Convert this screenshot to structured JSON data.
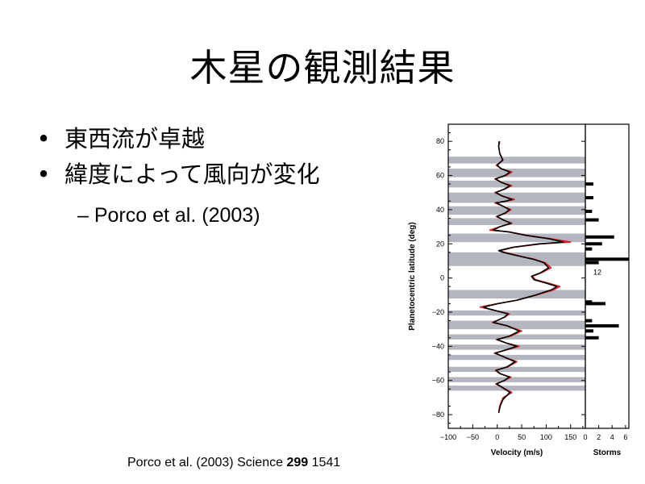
{
  "slide": {
    "title": "木星の観測結果",
    "bullets": [
      "東西流が卓越",
      "緯度によって風向が変化"
    ],
    "bullet_symbol": "•",
    "sub_bullet": "– Porco et al. (2003)",
    "citation": {
      "prefix": "Porco et al. (2003) Science ",
      "volume": "299",
      "page": " 1541"
    }
  },
  "chart_data": {
    "type": "line",
    "xlabel": "Velocity (m/s)",
    "ylabel": "Planetocentric latitude (deg)",
    "xlim": [
      -100,
      180
    ],
    "ylim": [
      -88,
      90
    ],
    "x_ticks": [
      "−100",
      "−50",
      "0",
      "50",
      "100",
      "150"
    ],
    "y_ticks": [
      "80",
      "60",
      "40",
      "20",
      "0",
      "−20",
      "−40",
      "−60",
      "−80"
    ],
    "bands": [
      [
        67,
        71
      ],
      [
        59,
        64
      ],
      [
        53,
        57
      ],
      [
        44,
        50
      ],
      [
        37,
        42
      ],
      [
        31,
        35
      ],
      [
        21,
        26
      ],
      [
        7,
        15
      ],
      [
        -7,
        -12
      ],
      [
        -19,
        -22
      ],
      [
        -25,
        -30
      ],
      [
        -33,
        -36
      ],
      [
        -39,
        -42
      ],
      [
        -45,
        -48
      ],
      [
        -52,
        -55
      ],
      [
        -58,
        -61
      ],
      [
        -63,
        -66
      ]
    ],
    "series": [
      {
        "color": "#d42020",
        "points": [
          [
            3,
            -78
          ],
          [
            6,
            -74
          ],
          [
            12,
            -70
          ],
          [
            30,
            -67
          ],
          [
            10,
            -64
          ],
          [
            -3,
            -62
          ],
          [
            15,
            -60
          ],
          [
            28,
            -58
          ],
          [
            5,
            -56
          ],
          [
            -4,
            -54
          ],
          [
            22,
            -52
          ],
          [
            40,
            -49
          ],
          [
            12,
            -46
          ],
          [
            -6,
            -44
          ],
          [
            20,
            -42
          ],
          [
            45,
            -40
          ],
          [
            18,
            -38
          ],
          [
            -2,
            -36
          ],
          [
            28,
            -34
          ],
          [
            50,
            -31
          ],
          [
            20,
            -28
          ],
          [
            -10,
            -26
          ],
          [
            15,
            -23
          ],
          [
            25,
            -21
          ],
          [
            -20,
            -18
          ],
          [
            -35,
            -17
          ],
          [
            0,
            -15
          ],
          [
            40,
            -13
          ],
          [
            80,
            -10
          ],
          [
            115,
            -7
          ],
          [
            128,
            -5
          ],
          [
            105,
            -3
          ],
          [
            78,
            -1
          ],
          [
            72,
            1
          ],
          [
            90,
            3
          ],
          [
            110,
            6
          ],
          [
            98,
            9
          ],
          [
            75,
            11
          ],
          [
            45,
            13
          ],
          [
            15,
            15
          ],
          [
            5,
            16
          ],
          [
            35,
            18
          ],
          [
            90,
            20
          ],
          [
            150,
            21
          ],
          [
            110,
            23
          ],
          [
            60,
            25
          ],
          [
            25,
            27
          ],
          [
            -15,
            28
          ],
          [
            5,
            30
          ],
          [
            30,
            32
          ],
          [
            12,
            34
          ],
          [
            -2,
            36
          ],
          [
            18,
            38
          ],
          [
            28,
            40
          ],
          [
            12,
            42
          ],
          [
            -5,
            44
          ],
          [
            20,
            45
          ],
          [
            35,
            46
          ],
          [
            10,
            48
          ],
          [
            -5,
            50
          ],
          [
            15,
            52
          ],
          [
            30,
            54
          ],
          [
            8,
            56
          ],
          [
            -5,
            58
          ],
          [
            18,
            60
          ],
          [
            30,
            62
          ],
          [
            8,
            64
          ],
          [
            -2,
            66
          ],
          [
            12,
            69
          ],
          [
            5,
            73
          ],
          [
            3,
            77
          ],
          [
            5,
            80
          ]
        ]
      },
      {
        "color": "#000000",
        "points": [
          [
            3,
            -79
          ],
          [
            6,
            -75
          ],
          [
            12,
            -71
          ],
          [
            26,
            -67
          ],
          [
            10,
            -64
          ],
          [
            -1,
            -62
          ],
          [
            14,
            -60
          ],
          [
            25,
            -58
          ],
          [
            6,
            -56
          ],
          [
            -2,
            -54
          ],
          [
            20,
            -52
          ],
          [
            36,
            -49
          ],
          [
            12,
            -46
          ],
          [
            -4,
            -44
          ],
          [
            18,
            -42
          ],
          [
            40,
            -40
          ],
          [
            18,
            -38
          ],
          [
            0,
            -36
          ],
          [
            25,
            -34
          ],
          [
            45,
            -31
          ],
          [
            20,
            -28
          ],
          [
            -8,
            -26
          ],
          [
            14,
            -23
          ],
          [
            22,
            -21
          ],
          [
            -18,
            -18
          ],
          [
            -28,
            -17
          ],
          [
            2,
            -15
          ],
          [
            40,
            -13
          ],
          [
            78,
            -10
          ],
          [
            110,
            -7
          ],
          [
            122,
            -5
          ],
          [
            100,
            -3
          ],
          [
            75,
            -1
          ],
          [
            70,
            1
          ],
          [
            88,
            3
          ],
          [
            105,
            6
          ],
          [
            95,
            9
          ],
          [
            73,
            11
          ],
          [
            42,
            13
          ],
          [
            12,
            15
          ],
          [
            3,
            16
          ],
          [
            32,
            18
          ],
          [
            85,
            20
          ],
          [
            135,
            21
          ],
          [
            105,
            23
          ],
          [
            58,
            25
          ],
          [
            22,
            27
          ],
          [
            -8,
            28
          ],
          [
            5,
            30
          ],
          [
            28,
            32
          ],
          [
            12,
            34
          ],
          [
            0,
            36
          ],
          [
            16,
            38
          ],
          [
            25,
            40
          ],
          [
            12,
            42
          ],
          [
            -2,
            44
          ],
          [
            18,
            45
          ],
          [
            30,
            46
          ],
          [
            10,
            48
          ],
          [
            -3,
            50
          ],
          [
            14,
            52
          ],
          [
            26,
            54
          ],
          [
            8,
            56
          ],
          [
            -3,
            58
          ],
          [
            16,
            60
          ],
          [
            26,
            62
          ],
          [
            8,
            64
          ],
          [
            0,
            66
          ],
          [
            11,
            69
          ],
          [
            5,
            73
          ],
          [
            3,
            77
          ],
          [
            4,
            80
          ]
        ]
      }
    ],
    "storms": {
      "xlabel": "Storms",
      "x_ticks": [
        "0",
        "2",
        "4",
        "6"
      ],
      "xlim": [
        0,
        6.5
      ],
      "annotation": "12",
      "bars": [
        {
          "lat": 55,
          "count": 1.2
        },
        {
          "lat": 47,
          "count": 1.2
        },
        {
          "lat": 39,
          "count": 1.0
        },
        {
          "lat": 34,
          "count": 2.0
        },
        {
          "lat": 24,
          "count": 4.3
        },
        {
          "lat": 20,
          "count": 2.5
        },
        {
          "lat": 17,
          "count": 1.0
        },
        {
          "lat": 11,
          "count": 12
        },
        {
          "lat": 9,
          "count": 2.0
        },
        {
          "lat": -14,
          "count": 1.0
        },
        {
          "lat": -15,
          "count": 3.0
        },
        {
          "lat": -25,
          "count": 1.0
        },
        {
          "lat": -28,
          "count": 5.0
        },
        {
          "lat": -31,
          "count": 1.2
        },
        {
          "lat": -35,
          "count": 2.0
        }
      ]
    }
  }
}
